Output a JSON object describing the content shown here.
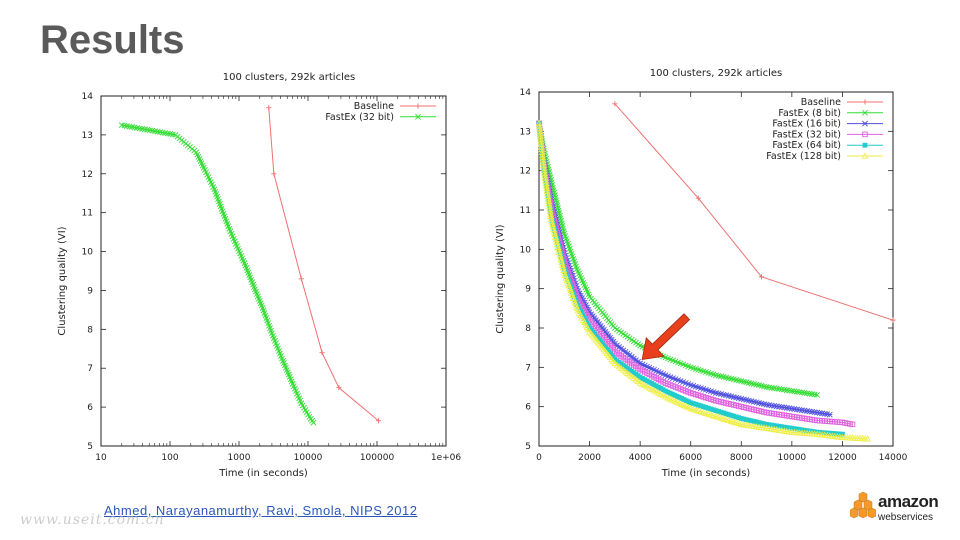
{
  "slide": {
    "title": "Results",
    "citation": "Ahmed, Narayanamurthy, Ravi, Smola, NIPS 2012",
    "watermark": "www.useit.com.cn",
    "logo": {
      "word": "amazon",
      "sub": "webservices",
      "icon": "aws-cubes-icon",
      "color": "#f29b2a"
    }
  },
  "chart_data": [
    {
      "type": "line",
      "title": "100 clusters, 292k articles",
      "xlabel": "Time (in seconds)",
      "ylabel": "Clustering quality (VI)",
      "xscale": "log",
      "xlim": [
        10,
        1000000
      ],
      "ylim": [
        5,
        14
      ],
      "xticks": [
        10,
        100,
        1000,
        10000,
        100000,
        1000000
      ],
      "xtick_labels": [
        "10",
        "100",
        "1000",
        "10000",
        "100000",
        "1e+06"
      ],
      "yticks": [
        5,
        6,
        7,
        8,
        9,
        10,
        11,
        12,
        13,
        14
      ],
      "grid": false,
      "legend": "top-right",
      "series": [
        {
          "name": "Baseline",
          "color": "#f07070",
          "marker": "plus",
          "x": [
            2700,
            3200,
            8000,
            16000,
            28000,
            105000
          ],
          "y": [
            13.7,
            12.0,
            9.3,
            7.4,
            6.5,
            5.65
          ]
        },
        {
          "name": "FastEx (32 bit)",
          "color": "#33dd33",
          "marker": "x",
          "dense": true,
          "x": [
            20,
            120,
            240,
            320,
            440,
            560,
            700,
            900,
            1200,
            1600,
            2200,
            3000,
            4200,
            6000,
            8000,
            10500,
            12000
          ],
          "y": [
            13.25,
            13.0,
            12.55,
            12.1,
            11.6,
            11.1,
            10.65,
            10.2,
            9.7,
            9.15,
            8.55,
            7.9,
            7.25,
            6.6,
            6.1,
            5.75,
            5.6
          ]
        }
      ]
    },
    {
      "type": "line",
      "title": "100 clusters, 292k articles",
      "xlabel": "Time (in seconds)",
      "ylabel": "Clustering quality (VI)",
      "xlim": [
        0,
        14000
      ],
      "ylim": [
        5,
        14
      ],
      "xticks": [
        0,
        2000,
        4000,
        6000,
        8000,
        10000,
        12000,
        14000
      ],
      "yticks": [
        5,
        6,
        7,
        8,
        9,
        10,
        11,
        12,
        13,
        14
      ],
      "grid": false,
      "legend": "top-right",
      "annotation": {
        "type": "arrow",
        "color": "#e8401c",
        "points_to": [
          4000,
          7.2
        ]
      },
      "series": [
        {
          "name": "Baseline",
          "color": "#f07070",
          "marker": "plus",
          "x": [
            3000,
            6300,
            8800,
            14000
          ],
          "y": [
            13.7,
            11.3,
            9.3,
            8.2
          ]
        },
        {
          "name": "FastEx (8 bit)",
          "color": "#33dd33",
          "marker": "x",
          "dense": true,
          "x": [
            0,
            200,
            500,
            1000,
            1500,
            2000,
            3000,
            4000,
            5000,
            6000,
            7000,
            8000,
            9000,
            10000,
            11000
          ],
          "y": [
            13.2,
            12.5,
            11.7,
            10.4,
            9.5,
            8.8,
            8.0,
            7.55,
            7.25,
            7.0,
            6.8,
            6.65,
            6.5,
            6.4,
            6.3
          ]
        },
        {
          "name": "FastEx (16 bit)",
          "color": "#5050e0",
          "marker": "star",
          "dense": true,
          "x": [
            0,
            200,
            500,
            1000,
            1500,
            2000,
            3000,
            4000,
            5000,
            6000,
            7000,
            8000,
            9000,
            10000,
            11000,
            11500
          ],
          "y": [
            13.2,
            12.2,
            11.2,
            9.9,
            9.0,
            8.4,
            7.6,
            7.1,
            6.8,
            6.55,
            6.35,
            6.2,
            6.05,
            5.95,
            5.85,
            5.8
          ]
        },
        {
          "name": "FastEx (32 bit)",
          "color": "#e060e0",
          "marker": "square",
          "dense": true,
          "x": [
            0,
            200,
            500,
            1000,
            1500,
            2000,
            3000,
            4000,
            5000,
            6000,
            7000,
            8000,
            9000,
            10000,
            11000,
            12000,
            12400
          ],
          "y": [
            13.2,
            12.1,
            11.0,
            9.7,
            8.8,
            8.2,
            7.4,
            6.95,
            6.6,
            6.35,
            6.15,
            6.0,
            5.85,
            5.75,
            5.65,
            5.6,
            5.55
          ]
        },
        {
          "name": "FastEx (64 bit)",
          "color": "#22cccc",
          "marker": "filled-square",
          "dense": true,
          "x": [
            0,
            200,
            500,
            1000,
            1500,
            2000,
            3000,
            4000,
            5000,
            6000,
            7000,
            8000,
            9000,
            10000,
            11000,
            12000
          ],
          "y": [
            13.2,
            12.0,
            10.8,
            9.5,
            8.6,
            8.0,
            7.2,
            6.75,
            6.4,
            6.1,
            5.9,
            5.7,
            5.55,
            5.45,
            5.35,
            5.3
          ]
        },
        {
          "name": "FastEx (128 bit)",
          "color": "#eeee44",
          "marker": "triangle",
          "dense": true,
          "x": [
            0,
            200,
            500,
            1000,
            1500,
            2000,
            3000,
            4000,
            5000,
            6000,
            7000,
            8000,
            9000,
            10000,
            11000,
            12000,
            13000
          ],
          "y": [
            13.2,
            12.0,
            10.7,
            9.4,
            8.5,
            7.9,
            7.1,
            6.6,
            6.25,
            5.95,
            5.75,
            5.55,
            5.45,
            5.35,
            5.3,
            5.22,
            5.18
          ]
        }
      ]
    }
  ]
}
